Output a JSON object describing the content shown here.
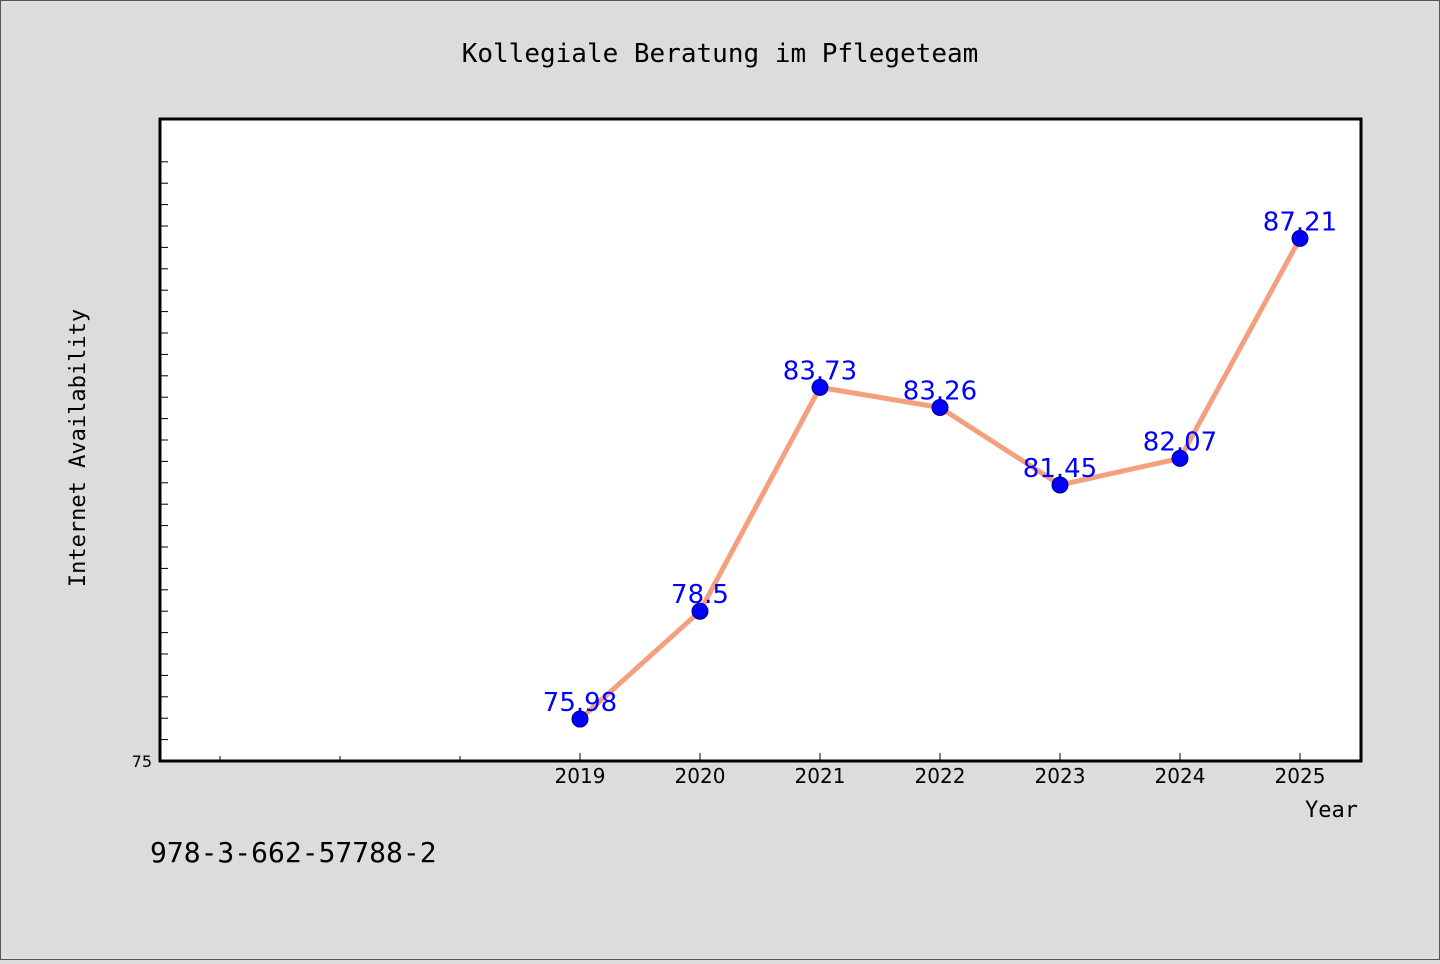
{
  "chart_data": {
    "type": "line",
    "title": "Kollegiale Beratung im Pflegeteam",
    "xlabel": "Year",
    "ylabel": "Internet Availability",
    "x": [
      "2019",
      "2020",
      "2021",
      "2022",
      "2023",
      "2024",
      "2025"
    ],
    "series": [
      {
        "values": [
          75.98,
          78.5,
          83.73,
          83.26,
          81.45,
          82.07,
          87.21
        ],
        "labels": [
          "75.98",
          "78.5",
          "83.73",
          "83.26",
          "81.45",
          "82.07",
          "87.21"
        ]
      }
    ],
    "y_tick_labels": [
      "75"
    ],
    "ylim": [
      75,
      90
    ],
    "grid": false,
    "colors": {
      "line": "#f4a07f",
      "marker": "#0000ff",
      "data_label": "#0000ff",
      "plot_background": "#ffffff",
      "figure_background": "#dcdcdc"
    }
  },
  "footer": {
    "isbn": "978-3-662-57788-2"
  }
}
